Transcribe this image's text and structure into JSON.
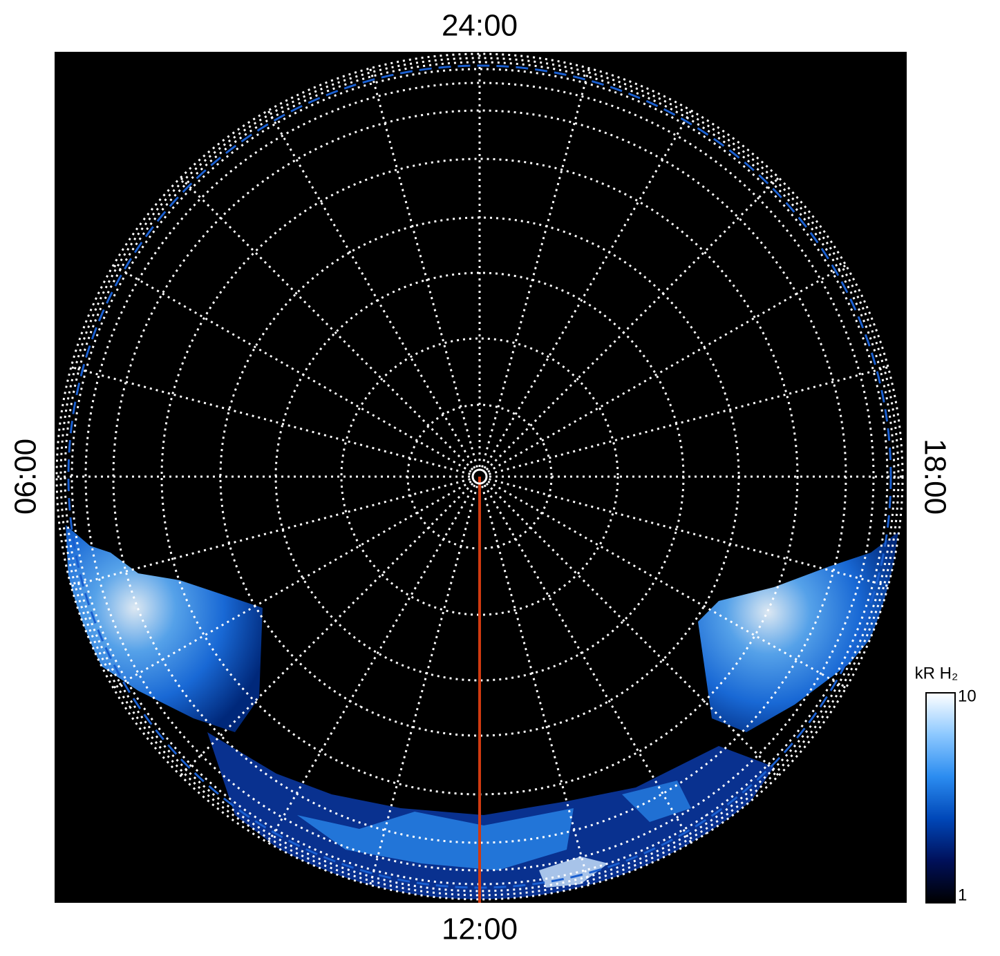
{
  "chart_data": {
    "type": "polar",
    "top_label": "24:00",
    "left_label": "06:00",
    "bottom_label": "12:00",
    "right_label": "18:00",
    "colorbar": {
      "label": "kR H₂",
      "lim": [
        1,
        10
      ],
      "ticks": [
        1,
        10
      ],
      "log": true,
      "colors": [
        "#000000",
        "#00105a",
        "#0047b8",
        "#2b8cf0",
        "#8cc8ff",
        "#ffffff"
      ]
    },
    "meridian_color": "#d03a10",
    "oval_color": "#1a5fd0"
  }
}
